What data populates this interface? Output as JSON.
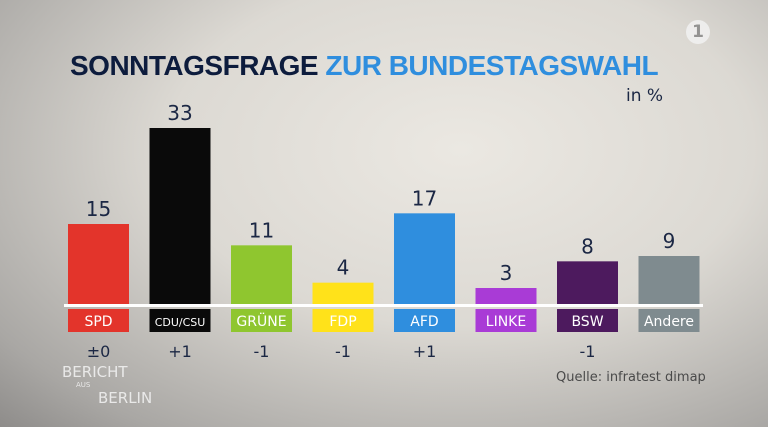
{
  "chart_data": {
    "type": "bar",
    "title_part1": "SONNTAGSFRAGE",
    "title_part2": "ZUR BUNDESTAGSWAHL",
    "unit": "in %",
    "categories": [
      "SPD",
      "CDU/CSU",
      "GRÜNE",
      "FDP",
      "AFD",
      "LINKE",
      "BSW",
      "Andere"
    ],
    "values": [
      15,
      33,
      11,
      4,
      17,
      3,
      8,
      9
    ],
    "changes": [
      "±0",
      "+1",
      "-1",
      "-1",
      "+1",
      "",
      "-1",
      ""
    ],
    "colors": [
      "#e3342b",
      "#0a0a0a",
      "#8fc62f",
      "#ffe21a",
      "#2f8ede",
      "#a93bd6",
      "#4d1a5e",
      "#7f8b8f"
    ],
    "label_text_colors": [
      "#ffffff",
      "#ffffff",
      "#ffffff",
      "#ffffff",
      "#ffffff",
      "#ffffff",
      "#ffffff",
      "#ffffff"
    ],
    "ylim": [
      0,
      35
    ],
    "grid": false,
    "source": "Quelle: infratest dimap"
  },
  "branding": {
    "show_logo": "BERICHT AUS BERLIN",
    "show_logo_line1": "BERICHT",
    "show_logo_line2": "AUS",
    "show_logo_line3": "BERLIN",
    "channel_logo": "1"
  }
}
